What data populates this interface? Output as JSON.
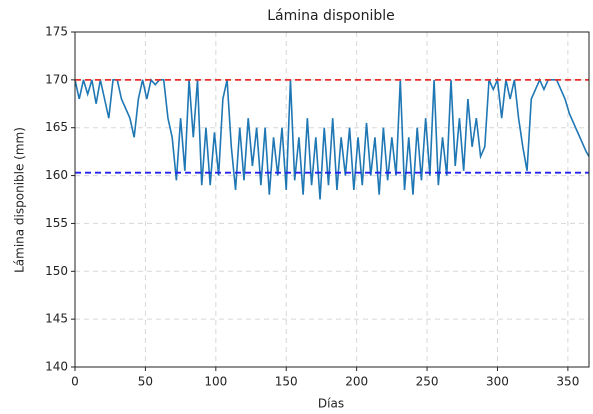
{
  "chart_data": {
    "type": "line",
    "title": "Lámina disponible",
    "x_label": "Días",
    "y_label": "Lámina disponible (mm)",
    "x": [
      0,
      3,
      6,
      9,
      12,
      15,
      18,
      21,
      24,
      27,
      30,
      33,
      36,
      39,
      42,
      45,
      48,
      51,
      54,
      57,
      60,
      63,
      66,
      69,
      72,
      75,
      78,
      81,
      84,
      87,
      90,
      93,
      96,
      99,
      102,
      105,
      108,
      111,
      114,
      117,
      120,
      123,
      126,
      129,
      132,
      135,
      138,
      141,
      144,
      147,
      150,
      153,
      156,
      159,
      162,
      165,
      168,
      171,
      174,
      177,
      180,
      183,
      186,
      189,
      192,
      195,
      198,
      201,
      204,
      207,
      210,
      213,
      216,
      219,
      222,
      225,
      228,
      231,
      234,
      237,
      240,
      243,
      246,
      249,
      252,
      255,
      258,
      261,
      264,
      267,
      270,
      273,
      276,
      279,
      282,
      285,
      288,
      291,
      294,
      297,
      300,
      303,
      306,
      309,
      312,
      315,
      318,
      321,
      324,
      327,
      330,
      333,
      336,
      339,
      342,
      345,
      348,
      351,
      354,
      357,
      360,
      363,
      365
    ],
    "series": [
      {
        "color": "#1f77b4",
        "values": [
          170,
          168,
          170,
          168.5,
          170,
          167.5,
          170,
          168,
          166,
          170,
          170,
          168,
          167,
          166,
          164,
          168,
          170,
          168,
          170,
          169.5,
          170,
          170,
          166,
          164,
          159.5,
          166,
          160.5,
          170,
          164,
          170,
          159,
          165,
          159,
          164.5,
          160,
          168,
          170,
          163,
          158.5,
          165,
          159.5,
          166,
          161,
          165,
          159,
          165,
          158,
          164,
          160,
          165,
          158.5,
          170,
          159.5,
          164,
          158,
          166,
          159,
          164,
          157.5,
          165,
          159,
          166,
          158.5,
          164,
          160,
          165,
          158.5,
          164,
          159,
          165.5,
          160,
          164,
          158,
          165,
          159.5,
          164,
          160,
          170,
          158.5,
          164,
          158,
          165,
          159.5,
          166,
          160,
          170,
          159,
          164,
          160,
          170,
          161,
          166,
          160.5,
          168,
          163,
          166,
          162,
          163,
          170,
          169,
          170,
          166,
          170,
          168,
          170,
          166,
          163,
          160.5,
          168,
          169,
          170,
          169,
          170,
          170,
          170,
          169,
          168,
          166.5,
          165.5,
          164.5,
          163.5,
          162.5,
          162
        ]
      }
    ],
    "hlines": [
      {
        "value": 170,
        "color": "#e8302c"
      },
      {
        "value": 160.3,
        "color": "#2222ee"
      }
    ],
    "xlim": [
      0,
      365
    ],
    "xticks": [
      0,
      50,
      100,
      150,
      200,
      250,
      300,
      350
    ],
    "ylim": [
      140,
      175
    ],
    "yticks": [
      140,
      145,
      150,
      155,
      160,
      165,
      170,
      175
    ],
    "grid": true
  }
}
